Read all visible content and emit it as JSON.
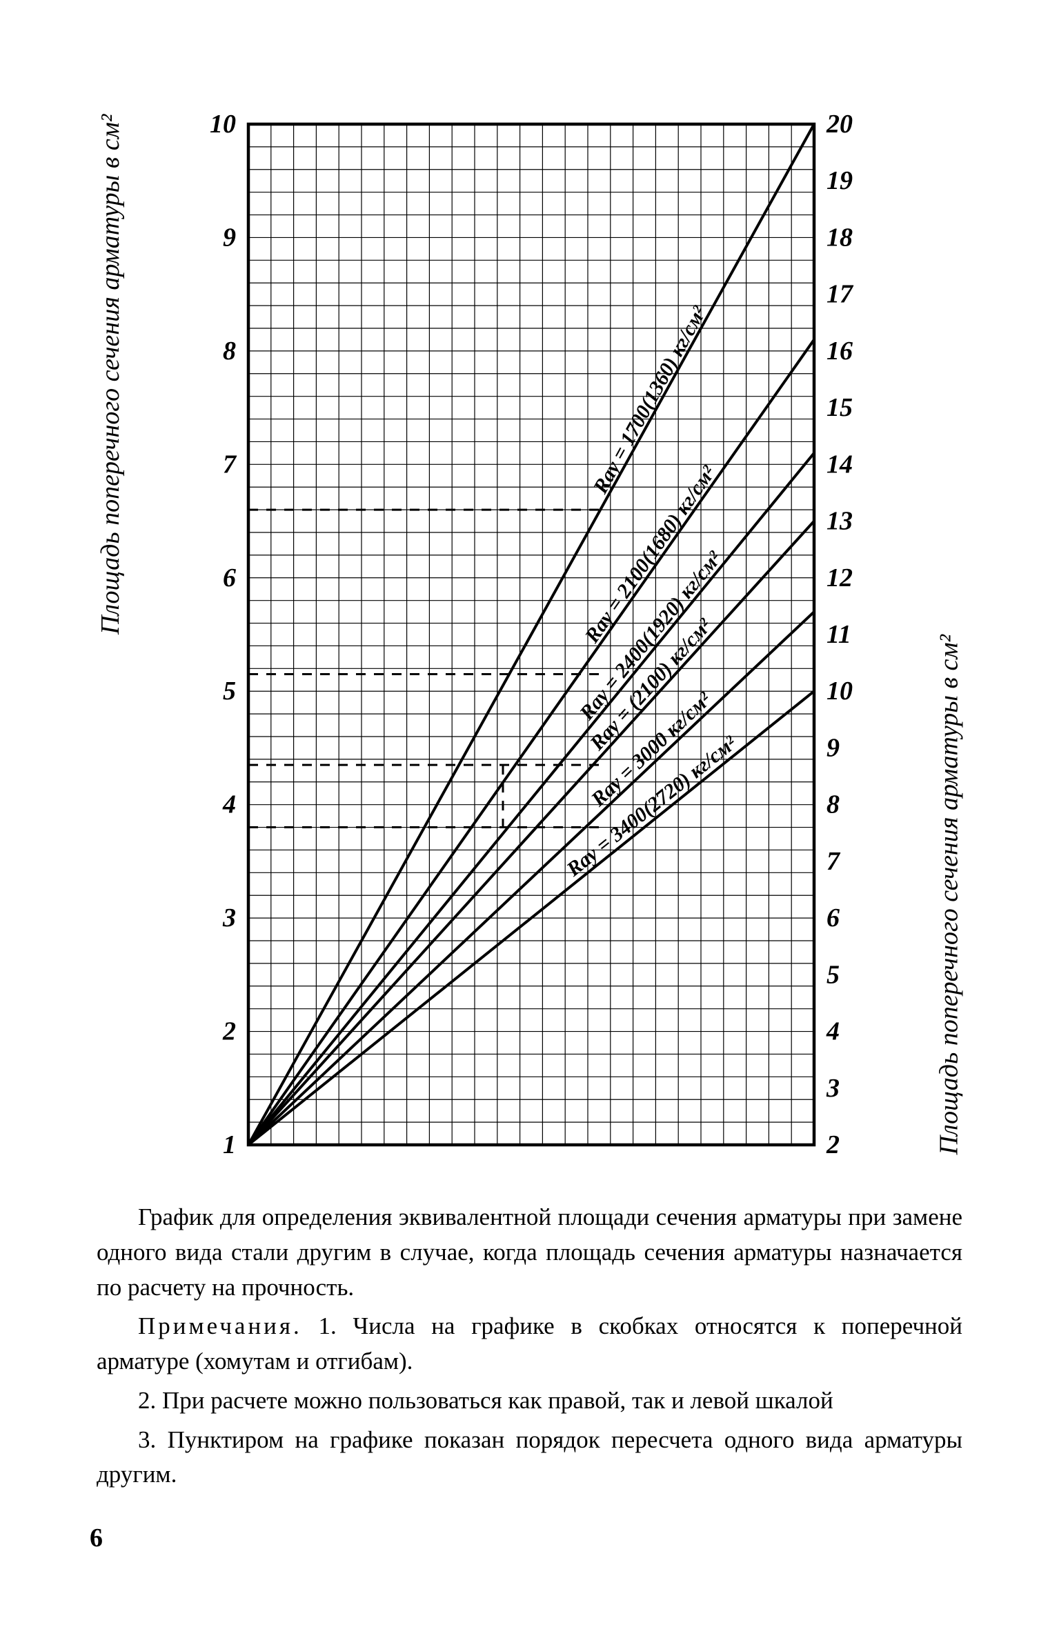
{
  "page_number": "6",
  "chart": {
    "type": "line",
    "background_color": "#ffffff",
    "grid_color": "#000000",
    "border_color": "#000000",
    "line_color": "#000000",
    "line_width": 4,
    "grid_width": 1.2,
    "border_width": 4.5,
    "left_axis": {
      "title": "Площадь поперечного сечения арматуры в см²",
      "min": 1,
      "max": 10,
      "ticks": [
        1,
        2,
        3,
        4,
        5,
        6,
        7,
        8,
        9,
        10
      ],
      "minor_per_major": 5,
      "fontsize": 38,
      "font_style": "italic"
    },
    "right_axis": {
      "title": "Площадь поперечного сечения арматуры в см²",
      "min": 2,
      "max": 20,
      "ticks": [
        2,
        3,
        4,
        5,
        6,
        7,
        8,
        9,
        10,
        11,
        12,
        13,
        14,
        15,
        16,
        17,
        18,
        19,
        20
      ],
      "minor_per_major": 5,
      "fontsize": 38,
      "font_style": "italic"
    },
    "x_axis": {
      "cells": 25
    },
    "series": [
      {
        "label": "Rау = 1700(1360) кг/см²",
        "left_start": 1,
        "right_end": 20
      },
      {
        "label": "Rау = 2100(1680) кг/см²",
        "left_start": 1,
        "right_end": 16.2
      },
      {
        "label": "Rау = 2400(1920) кг/см²",
        "left_start": 1,
        "right_end": 14.2
      },
      {
        "label": "Rау = (2100) кг/см²",
        "left_start": 1,
        "right_end": 13.0
      },
      {
        "label": "Rау = 3000 кг/см²",
        "left_start": 1,
        "right_end": 11.4
      },
      {
        "label": "Rау = 3400(2720) кг/см²",
        "left_start": 1,
        "right_end": 10.0
      }
    ],
    "dashed_refs_left_y": [
      3.8,
      4.35,
      5.15,
      6.6
    ],
    "label_fontsize": 30
  },
  "caption": {
    "p1": "График для определения эквивалентной площади сечения арматуры при замене одного вида стали другим в случае, когда площадь сечения арматуры назначается по расчету на прочность.",
    "notes_label": "Примечания.",
    "n1": "1. Числа на графике в скобках относятся к поперечной арматуре (хомутам и отгибам).",
    "n2": "2. При расчете можно пользоваться как правой, так и левой шкалой",
    "n3": "3. Пунктиром на графике показан порядок пересчета одного вида арматуры другим.",
    "fontsize": 35
  }
}
